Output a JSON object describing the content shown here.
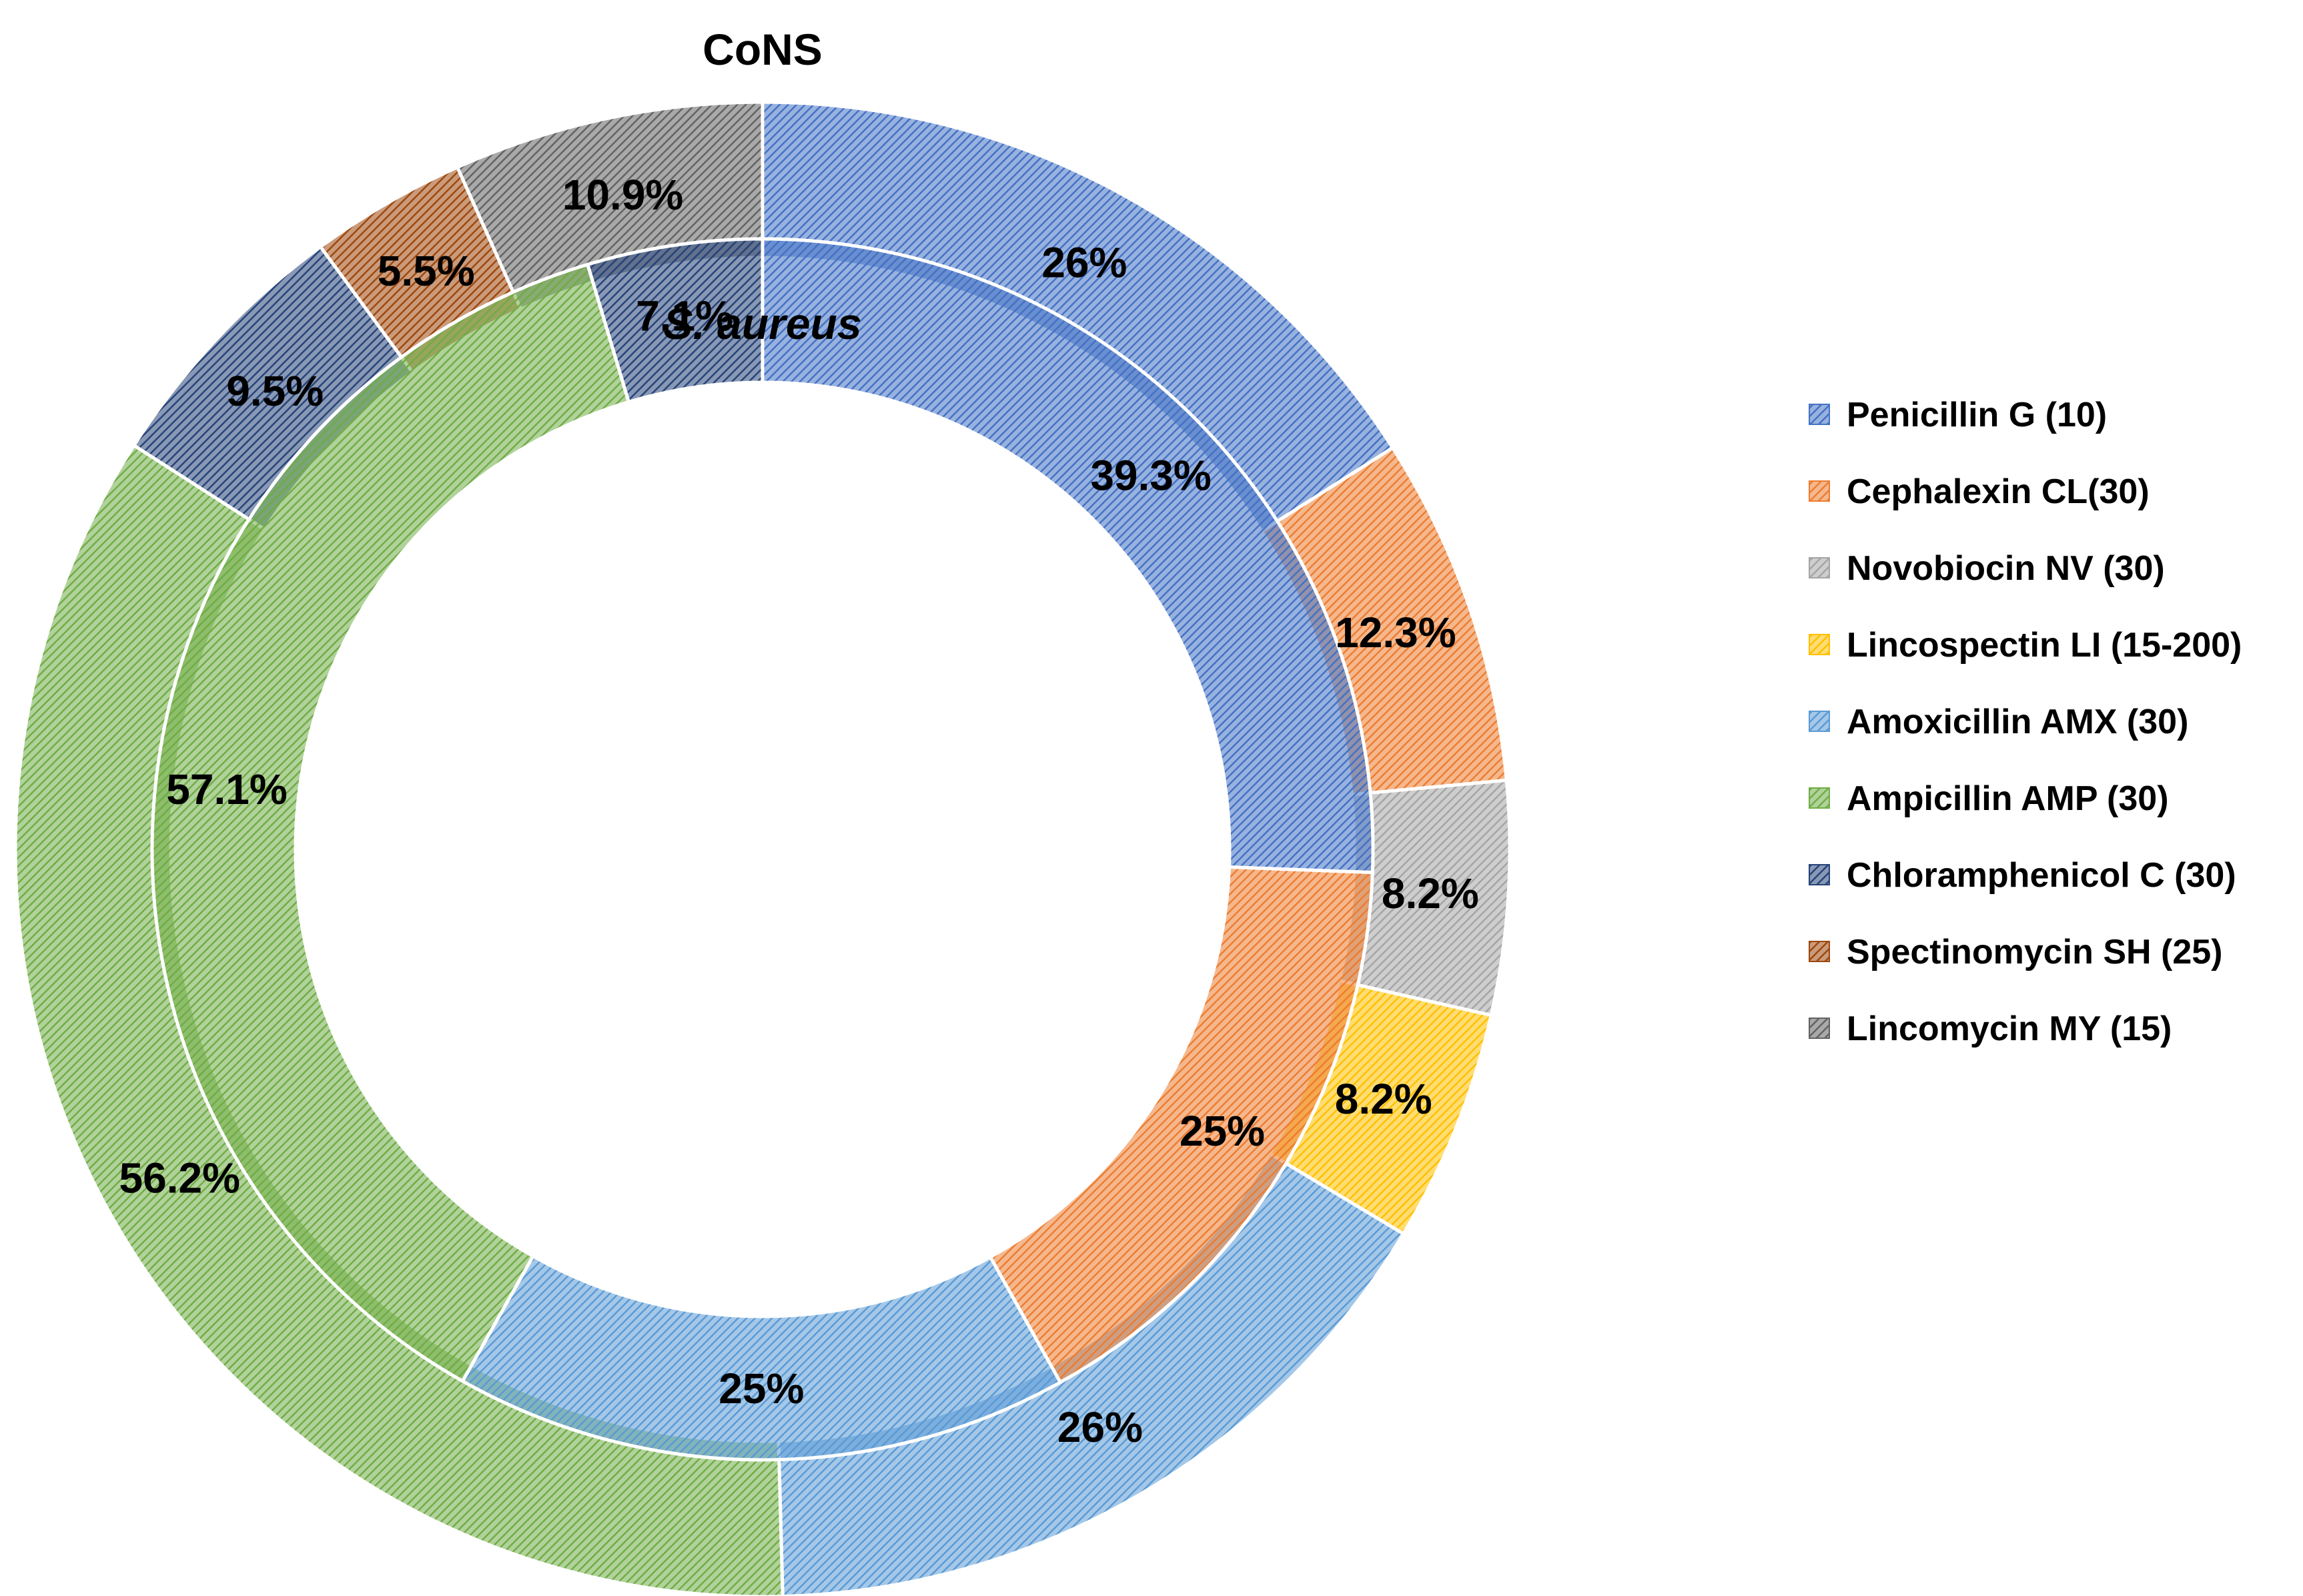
{
  "chart_data": {
    "type": "doughnut",
    "legend_position": "right",
    "categories": [
      "Penicillin G (10)",
      "Cephalexin CL(30)",
      "Novobiocin NV (30)",
      "Lincospectin LI (15-200)",
      "Amoxicillin AMX (30)",
      "Ampicillin AMP (30)",
      "Chloramphenicol C (30)",
      "Spectinomycin SH (25)",
      "Lincomycin MY (15)"
    ],
    "colors": [
      "#4472C4",
      "#ED7D31",
      "#A5A5A5",
      "#FFC000",
      "#5B9BD5",
      "#70AD47",
      "#264478",
      "#9E480E",
      "#636363"
    ],
    "series": [
      {
        "name": "CoNS",
        "ring": "outer",
        "name_style": "normal",
        "slices": [
          {
            "category": "Penicillin G (10)",
            "value": 26,
            "label": "26%"
          },
          {
            "category": "Cephalexin CL(30)",
            "value": 12.3,
            "label": "12.3%"
          },
          {
            "category": "Novobiocin NV (30)",
            "value": 8.2,
            "label": "8.2%"
          },
          {
            "category": "Lincospectin LI (15-200)",
            "value": 8.2,
            "label": "8.2%"
          },
          {
            "category": "Amoxicillin AMX (30)",
            "value": 26,
            "label": "26%"
          },
          {
            "category": "Ampicillin AMP (30)",
            "value": 56.2,
            "label": "56.2%"
          },
          {
            "category": "Chloramphenicol C (30)",
            "value": 9.5,
            "label": "9.5%"
          },
          {
            "category": "Spectinomycin SH (25)",
            "value": 5.5,
            "label": "5.5%"
          },
          {
            "category": "Lincomycin MY (15)",
            "value": 10.9,
            "label": "10.9%"
          }
        ]
      },
      {
        "name": "S. aureus",
        "ring": "inner",
        "name_style": "italic",
        "slices": [
          {
            "category": "Penicillin G (10)",
            "value": 39.3,
            "label": "39.3%"
          },
          {
            "category": "Cephalexin CL(30)",
            "value": 25,
            "label": "25%"
          },
          {
            "category": "Amoxicillin AMX (30)",
            "value": 25,
            "label": "25%"
          },
          {
            "category": "Ampicillin AMP (30)",
            "value": 57.1,
            "label": "57.1%"
          },
          {
            "category": "Chloramphenicol C (30)",
            "value": 7.1,
            "label": "7.1%"
          }
        ]
      }
    ]
  }
}
